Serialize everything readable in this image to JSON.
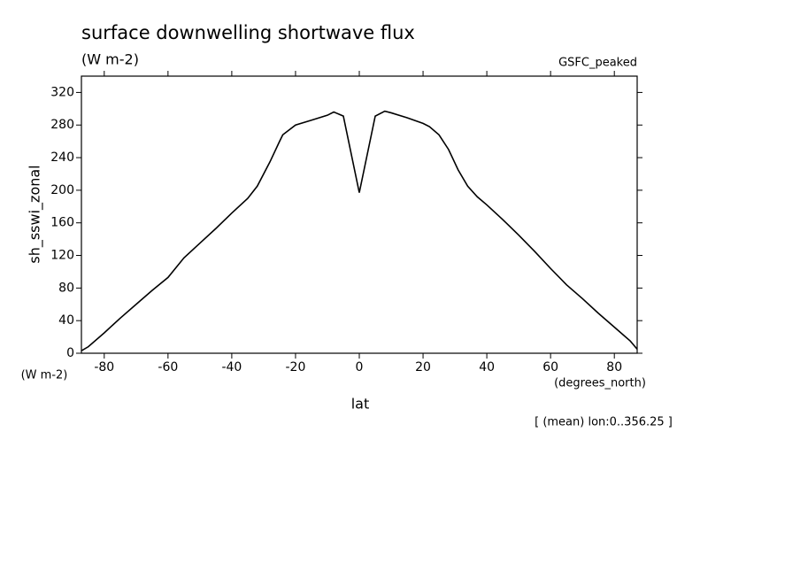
{
  "chart_data": {
    "type": "line",
    "title": "surface downwelling shortwave flux",
    "subtitle": "(W m-2)",
    "dataset": "GSFC_peaked",
    "y_label": "sh_sswi_zonal",
    "y_units": "(W m-2)",
    "x_label": "lat",
    "x_units": "(degrees_north)",
    "annotation": "[ (mean) lon:0..356.25 ]",
    "x": [
      -87.16,
      -85,
      -80,
      -75,
      -70,
      -65,
      -60,
      -55,
      -50,
      -45,
      -40,
      -35,
      -32,
      -28,
      -25,
      -24,
      -20,
      -15,
      -10,
      -8,
      -5,
      0,
      5,
      8,
      10,
      15,
      20,
      22,
      25,
      28,
      31,
      34,
      37,
      40,
      45,
      50,
      55,
      60,
      65,
      70,
      75,
      80,
      85,
      87.16
    ],
    "series": [
      {
        "name": "sh_sswi_zonal",
        "color": "#000000",
        "values": [
          3,
          8,
          25,
          43,
          60,
          77,
          93,
          117,
          135,
          153,
          172,
          190,
          205,
          235,
          260,
          268,
          280,
          286,
          292,
          296,
          291,
          197,
          291,
          297,
          295,
          289,
          282,
          278,
          268,
          250,
          225,
          205,
          192,
          182,
          164,
          145,
          125,
          104,
          84,
          67,
          49,
          32,
          15,
          5
        ]
      }
    ],
    "xlim": [
      -87.16,
      87.16
    ],
    "ylim": [
      0,
      340
    ],
    "xticks": [
      -80,
      -60,
      -40,
      -20,
      0,
      20,
      40,
      60,
      80
    ],
    "yticks": [
      0,
      40,
      80,
      120,
      160,
      200,
      240,
      280,
      320
    ]
  }
}
